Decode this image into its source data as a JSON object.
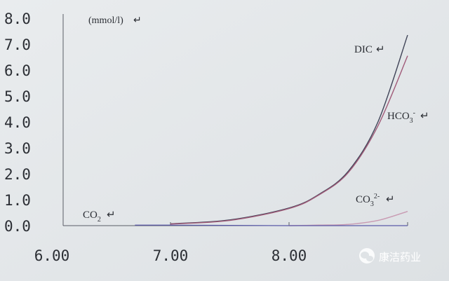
{
  "chart_data": {
    "type": "line",
    "unit_label": "(mmol/l)",
    "y_ticks": [
      "0.0",
      "1.0",
      "2.0",
      "3.0",
      "4.0",
      "5.0",
      "6.0",
      "7.0",
      "8.0"
    ],
    "x_ticks": [
      "6.00",
      "7.00",
      "8.00"
    ],
    "ylim": [
      0,
      8
    ],
    "xlim": [
      6.0,
      9.0
    ],
    "grid": false,
    "series": [
      {
        "name": "DIC",
        "color": "#404458",
        "x": [
          7.0,
          7.5,
          8.0,
          8.25,
          8.5,
          8.75,
          9.0
        ],
        "y": [
          0.07,
          0.22,
          0.68,
          1.2,
          2.1,
          4.0,
          7.35
        ]
      },
      {
        "name": "HCO3-",
        "color": "#a05a78",
        "x": [
          7.0,
          7.5,
          8.0,
          8.25,
          8.5,
          8.75,
          9.0
        ],
        "y": [
          0.06,
          0.2,
          0.66,
          1.18,
          2.05,
          3.85,
          6.55
        ]
      },
      {
        "name": "CO32-",
        "color": "#c89ab2",
        "x": [
          8.0,
          8.25,
          8.5,
          8.75,
          9.0
        ],
        "y": [
          0.0,
          0.02,
          0.05,
          0.2,
          0.55
        ]
      },
      {
        "name": "CO2",
        "color": "#5a5aa8",
        "x": [
          6.7,
          7.0,
          7.5,
          8.0,
          8.5,
          9.0
        ],
        "y": [
          0.02,
          0.02,
          0.01,
          0.0,
          0.0,
          0.0
        ]
      }
    ]
  },
  "labels": {
    "dic": "DIC",
    "hco3_main": "HCO",
    "hco3_sub": "3",
    "hco3_sup": "-",
    "co3_main": "CO",
    "co3_sub": "3",
    "co3_sup": "2-",
    "co2_main": "CO",
    "co2_sub": "2"
  },
  "watermark": {
    "text": "康洁药业",
    "icon": "wechat-icon"
  }
}
